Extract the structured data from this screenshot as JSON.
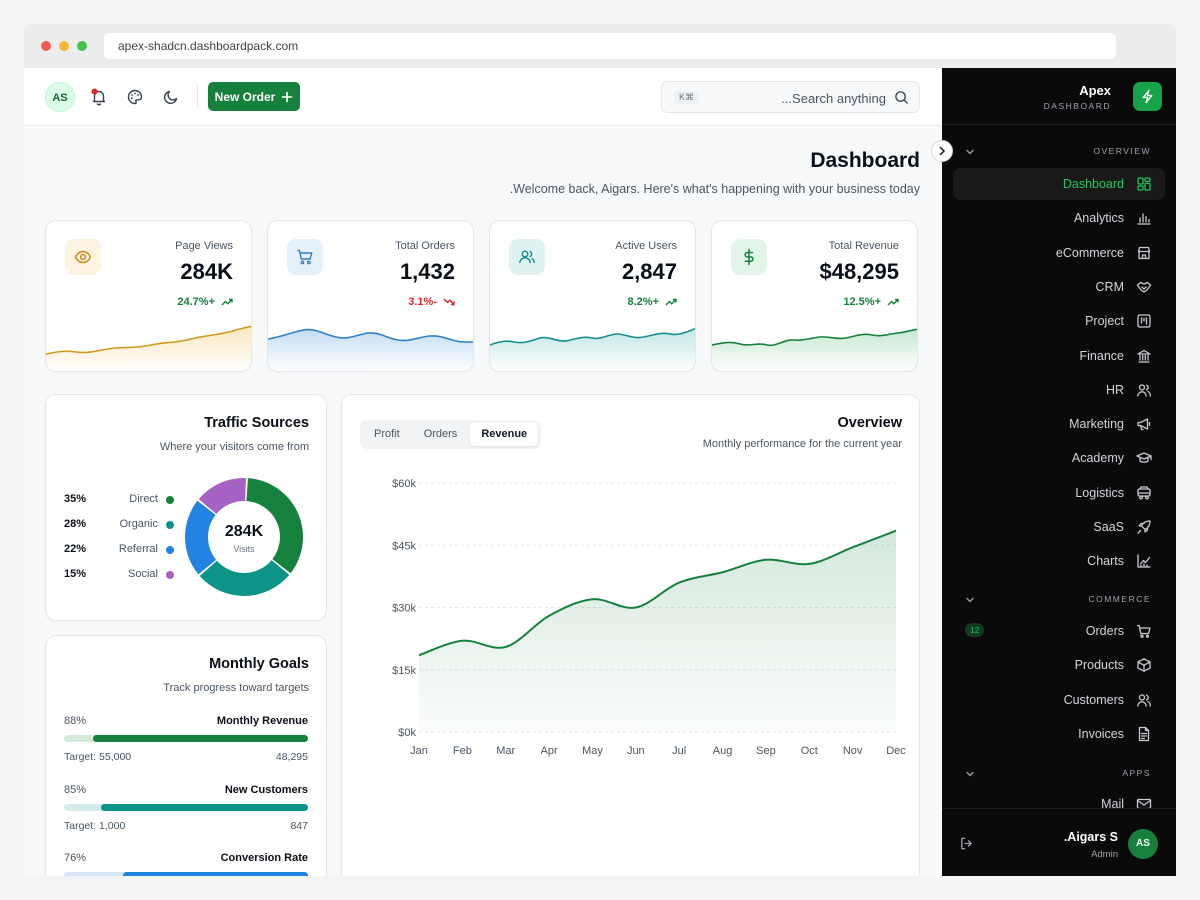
{
  "browser": {
    "url": "apex-shadcn.dashboardpack.com"
  },
  "topbar": {
    "avatar_initials": "AS",
    "new_order_label": "New Order",
    "search_kbd": "K⌘",
    "search_placeholder": "...Search anything"
  },
  "page": {
    "title": "Dashboard",
    "subtitle": ".Welcome back, Aigars. Here's what's happening with your business today"
  },
  "stats": [
    {
      "label": "Page Views",
      "value": "284K",
      "change": "24.7%+",
      "trend": "up",
      "color": "#d09a1e",
      "icon": "eye-icon"
    },
    {
      "label": "Total Orders",
      "value": "1,432",
      "change": "3.1%-",
      "trend": "down",
      "color": "#2f80c4",
      "icon": "cart-icon"
    },
    {
      "label": "Active Users",
      "value": "2,847",
      "change": "8.2%+",
      "trend": "up",
      "color": "#148f8f",
      "icon": "users-icon"
    },
    {
      "label": "Total Revenue",
      "value": "$48,295",
      "change": "12.5%+",
      "trend": "up",
      "color": "#16803d",
      "icon": "dollar-icon"
    }
  ],
  "traffic": {
    "title": "Traffic Sources",
    "subtitle": "Where your visitors come from",
    "center_value": "284K",
    "center_label": "Visits",
    "sources": [
      {
        "name": "Direct",
        "pct": "35%",
        "value": 35,
        "color": "#16803d"
      },
      {
        "name": "Organic",
        "pct": "28%",
        "value": 28,
        "color": "#0d9488"
      },
      {
        "name": "Referral",
        "pct": "22%",
        "value": 22,
        "color": "#2383e2"
      },
      {
        "name": "Social",
        "pct": "15%",
        "value": 15,
        "color": "#a561c4"
      }
    ]
  },
  "goals": {
    "title": "Monthly Goals",
    "subtitle": "Track progress toward targets",
    "items": [
      {
        "name": "Monthly Revenue",
        "pct": "88%",
        "value": 88,
        "target": "Target: 55,000",
        "current": "48,295",
        "color": "#16803d",
        "track": "#d6eadb"
      },
      {
        "name": "New Customers",
        "pct": "85%",
        "value": 85,
        "target": "Target: 1,000",
        "current": "847",
        "color": "#0d9488",
        "track": "#d3ece9"
      },
      {
        "name": "Conversion Rate",
        "pct": "76%",
        "value": 76,
        "target": "",
        "current": "",
        "color": "#2383e2",
        "track": "#d7e7f8"
      }
    ]
  },
  "overview": {
    "title": "Overview",
    "subtitle": "Monthly performance for the current year",
    "tabs": [
      "Profit",
      "Orders",
      "Revenue"
    ],
    "active_tab": "Revenue"
  },
  "chart_data": {
    "type": "area",
    "title": "Overview",
    "x": [
      "Jan",
      "Feb",
      "Mar",
      "Apr",
      "May",
      "Jun",
      "Jul",
      "Aug",
      "Sep",
      "Oct",
      "Nov",
      "Dec"
    ],
    "series": [
      {
        "values": [
          18500,
          22000,
          20500,
          28000,
          32000,
          30000,
          36000,
          38500,
          41500,
          40500,
          44500,
          48500
        ]
      }
    ],
    "yticks": [
      "$0k",
      "$15k",
      "$30k",
      "$45k",
      "$60k"
    ],
    "ylim": [
      0,
      60000
    ],
    "color": "#16803d",
    "grid": true
  },
  "sidebar": {
    "brand_name": "Apex",
    "brand_sub": "DASHBOARD",
    "sections": [
      {
        "label": "OVERVIEW",
        "items": [
          {
            "label": "Dashboard",
            "icon": "grid-icon",
            "active": true
          },
          {
            "label": "Analytics",
            "icon": "bar-chart-icon"
          },
          {
            "label": "eCommerce",
            "icon": "store-icon"
          },
          {
            "label": "CRM",
            "icon": "handshake-icon"
          },
          {
            "label": "Project",
            "icon": "kanban-icon"
          },
          {
            "label": "Finance",
            "icon": "bank-icon"
          },
          {
            "label": "HR",
            "icon": "users-icon"
          },
          {
            "label": "Marketing",
            "icon": "megaphone-icon"
          },
          {
            "label": "Academy",
            "icon": "graduation-cap-icon"
          },
          {
            "label": "Logistics",
            "icon": "truck-icon"
          },
          {
            "label": "SaaS",
            "icon": "rocket-icon"
          },
          {
            "label": "Charts",
            "icon": "line-chart-icon"
          }
        ]
      },
      {
        "label": "COMMERCE",
        "items": [
          {
            "label": "Orders",
            "icon": "cart-icon",
            "badge": "12"
          },
          {
            "label": "Products",
            "icon": "box-icon"
          },
          {
            "label": "Customers",
            "icon": "users-icon"
          },
          {
            "label": "Invoices",
            "icon": "file-icon"
          }
        ]
      },
      {
        "label": "APPS",
        "items": [
          {
            "label": "Mail",
            "icon": "mail-icon"
          }
        ]
      }
    ],
    "user": {
      "name": ".Aigars S",
      "role": "Admin",
      "initials": "AS"
    }
  }
}
